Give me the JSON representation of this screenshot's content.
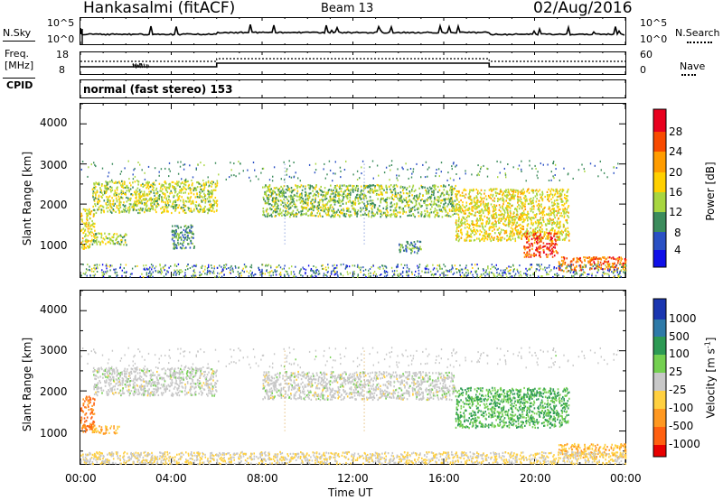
{
  "header": {
    "station": "Hankasalmi (fitACF)",
    "beam": "Beam 13",
    "date": "02/Aug/2016"
  },
  "top_panels": {
    "nsky_label": "N.Sky",
    "nsky_ticks": [
      "10^5",
      "10^0"
    ],
    "nsearch_label": "N.Search",
    "nsearch_ticks": [
      "10^5",
      "10^0"
    ],
    "freq_label_line1": "Freq.",
    "freq_label_line2": "[MHz]",
    "freq_ticks": [
      "18",
      "8"
    ],
    "nave_label": "Nave",
    "nave_ticks": [
      "60",
      "0"
    ],
    "cpid_label": "CPID",
    "cpid_text": "normal (fast stereo) 153"
  },
  "power_panel": {
    "ylabel": "Slant Range [km]",
    "yticks": [
      "4000",
      "3000",
      "2000",
      "1000"
    ],
    "colorbar_label": "Power [dB]",
    "colorbar_ticks": [
      "28",
      "24",
      "20",
      "16",
      "12",
      "8",
      "4"
    ],
    "colors": [
      "#e8001e",
      "#f84a00",
      "#ff9c00",
      "#ffd000",
      "#a8d640",
      "#3c8c5c",
      "#2a50c4",
      "#1010e8"
    ]
  },
  "velocity_panel": {
    "ylabel": "Slant Range [km]",
    "yticks": [
      "4000",
      "3000",
      "2000",
      "1000"
    ],
    "colorbar_label": "Velocity [m s",
    "colorbar_label_sup": "-1",
    "colorbar_label_end": "]",
    "colorbar_ticks": [
      "1000",
      "500",
      "100",
      "25",
      "-25",
      "-100",
      "-500",
      "-1000"
    ],
    "colors": [
      "#1a36b0",
      "#2e7aa8",
      "#2d9a54",
      "#74d050",
      "#c8c8c8",
      "#ffd040",
      "#ff9820",
      "#ff6010",
      "#e80000"
    ]
  },
  "x_axis": {
    "label": "Time UT",
    "ticks": [
      "00:00",
      "04:00",
      "08:00",
      "12:00",
      "16:00",
      "20:00",
      "00:00"
    ]
  },
  "chart_data": [
    {
      "type": "heatmap",
      "title": "Hankasalmi (fitACF) Beam 13 02/Aug/2016",
      "quantity": "Power",
      "unit": "dB",
      "xlabel": "Time UT",
      "ylabel": "Slant Range [km]",
      "xlim_hours": [
        0,
        24
      ],
      "ylim_km": [
        180,
        4500
      ],
      "color_range": [
        0,
        30
      ],
      "features": [
        {
          "t_start": 0.0,
          "t_end": 0.6,
          "range_km": [
            900,
            1900
          ],
          "value_db": 16
        },
        {
          "t_start": 0.5,
          "t_end": 2.0,
          "range_km": [
            1000,
            1300
          ],
          "value_db": 12
        },
        {
          "t_start": 0.5,
          "t_end": 6.0,
          "range_km": [
            1800,
            2600
          ],
          "value_db": 14
        },
        {
          "t_start": 4.0,
          "t_end": 5.0,
          "range_km": [
            900,
            1500
          ],
          "value_db": 8
        },
        {
          "t_start": 8.0,
          "t_end": 16.5,
          "range_km": [
            1700,
            2500
          ],
          "value_db": 12
        },
        {
          "t_start": 14.0,
          "t_end": 15.0,
          "range_km": [
            800,
            1100
          ],
          "value_db": 8
        },
        {
          "t_start": 16.5,
          "t_end": 21.5,
          "range_km": [
            1100,
            2400
          ],
          "value_db": 16
        },
        {
          "t_start": 19.5,
          "t_end": 21.0,
          "range_km": [
            700,
            1300
          ],
          "value_db": 26
        },
        {
          "t_start": 21.0,
          "t_end": 24.0,
          "range_km": [
            350,
            700
          ],
          "value_db": 24
        }
      ]
    },
    {
      "type": "heatmap",
      "quantity": "Velocity",
      "unit": "m s-1",
      "xlabel": "Time UT",
      "ylabel": "Slant Range [km]",
      "xlim_hours": [
        0,
        24
      ],
      "ylim_km": [
        180,
        4500
      ],
      "color_range": [
        -1000,
        1000
      ],
      "features": [
        {
          "t_start": 0.0,
          "t_end": 0.6,
          "range_km": [
            1000,
            1900
          ],
          "value_ms": -500
        },
        {
          "t_start": 0.5,
          "t_end": 1.7,
          "range_km": [
            950,
            1150
          ],
          "value_ms": -100
        },
        {
          "t_start": 0.5,
          "t_end": 6.0,
          "range_km": [
            1900,
            2600
          ],
          "value_ms": 0
        },
        {
          "t_start": 8.0,
          "t_end": 16.5,
          "range_km": [
            1800,
            2500
          ],
          "value_ms": 0
        },
        {
          "t_start": 16.5,
          "t_end": 21.5,
          "range_km": [
            1100,
            2100
          ],
          "value_ms": 100
        },
        {
          "t_start": 21.0,
          "t_end": 24.0,
          "range_km": [
            350,
            700
          ],
          "value_ms": -100
        },
        {
          "t_start": 0.0,
          "t_end": 24.0,
          "range_km": [
            200,
            500
          ],
          "value_ms": -25
        }
      ]
    }
  ]
}
